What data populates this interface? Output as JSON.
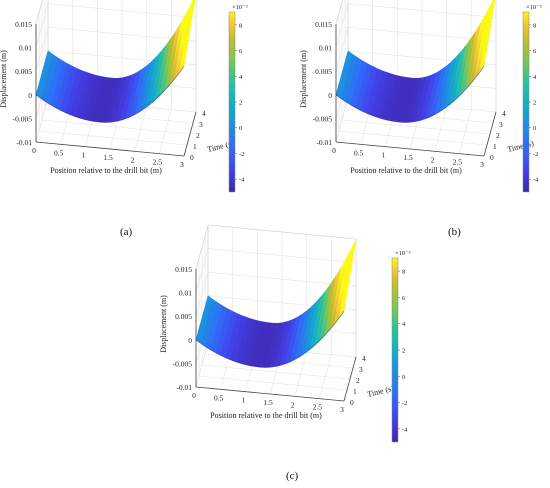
{
  "figure": {
    "panel_labels": [
      "(a)",
      "(b)",
      "(c)"
    ]
  },
  "colors": {
    "axis": "#444444",
    "grid": "#e3e3e3",
    "colormap": [
      "#3e26a8",
      "#4340ea",
      "#2f6cf9",
      "#1b91e0",
      "#13b0c6",
      "#31c29a",
      "#82c64f",
      "#c9bc2b",
      "#f7c93c",
      "#f9fb15"
    ]
  },
  "chart_data": [
    {
      "type": "surface",
      "panel": "(a)",
      "xlabel": "Position relative to the drill bit (m)",
      "ylabel": "Time (s)",
      "zlabel": "Displacement (m)",
      "x_ticks": [
        "0",
        "0.5",
        "1",
        "1.5",
        "2",
        "2.5",
        "3"
      ],
      "y_ticks": [
        "0",
        "1",
        "2",
        "3",
        "4"
      ],
      "z_ticks": [
        "-0.01",
        "-0.005",
        "0",
        "0.005",
        "0.01",
        "0.015"
      ],
      "xlim": [
        0,
        3
      ],
      "ylim": [
        0,
        4
      ],
      "zlim": [
        -0.01,
        0.015
      ],
      "colorbar": {
        "exponent": "×10⁻³",
        "ticks": [
          "8",
          "6",
          "4",
          "2",
          "0",
          "-2",
          "-4"
        ],
        "range": [
          -5,
          9
        ]
      },
      "surface": {
        "z_at_x0": 0.0,
        "z_min": -0.0045,
        "z_min_position": 1.3,
        "z_at_x3_t0": 0.009,
        "z_at_x3_t4": 0.015
      }
    },
    {
      "type": "surface",
      "panel": "(b)",
      "xlabel": "Position relative to the drill bit (m)",
      "ylabel": "Time (s)",
      "zlabel": "Displacement (m)",
      "x_ticks": [
        "0",
        "0.5",
        "1",
        "1.5",
        "2",
        "2.5",
        "3"
      ],
      "y_ticks": [
        "0",
        "1",
        "2",
        "3",
        "4"
      ],
      "z_ticks": [
        "-0.01",
        "-0.005",
        "0",
        "0.005",
        "0.01",
        "0.015"
      ],
      "xlim": [
        0,
        3
      ],
      "ylim": [
        0,
        4
      ],
      "zlim": [
        -0.01,
        0.015
      ],
      "colorbar": {
        "exponent": "×10⁻³",
        "ticks": [
          "8",
          "6",
          "4",
          "2",
          "0",
          "-2",
          "-4"
        ],
        "range": [
          -5,
          9
        ]
      },
      "surface": {
        "z_at_x0": 0.0,
        "z_min": -0.0045,
        "z_min_position": 1.3,
        "z_at_x3_t0": 0.009,
        "z_at_x3_t4": 0.015
      }
    },
    {
      "type": "surface",
      "panel": "(c)",
      "xlabel": "Position relative to the drill bit (m)",
      "ylabel": "Time (s)",
      "zlabel": "Displacement (m)",
      "x_ticks": [
        "0",
        "0.5",
        "1",
        "1.5",
        "2",
        "2.5",
        "3"
      ],
      "y_ticks": [
        "0",
        "1",
        "2",
        "3",
        "4"
      ],
      "z_ticks": [
        "-0.01",
        "-0.005",
        "0",
        "0.005",
        "0.01",
        "0.015"
      ],
      "xlim": [
        0,
        3
      ],
      "ylim": [
        0,
        4
      ],
      "zlim": [
        -0.01,
        0.015
      ],
      "colorbar": {
        "exponent": "×10⁻³",
        "ticks": [
          "8",
          "6",
          "4",
          "2",
          "0",
          "-2",
          "-4"
        ],
        "range": [
          -5,
          9
        ]
      },
      "surface": {
        "z_at_x0": 0.0,
        "z_min": -0.0045,
        "z_min_position": 1.3,
        "z_at_x3_t0": 0.009,
        "z_at_x3_t4": 0.015
      }
    }
  ]
}
